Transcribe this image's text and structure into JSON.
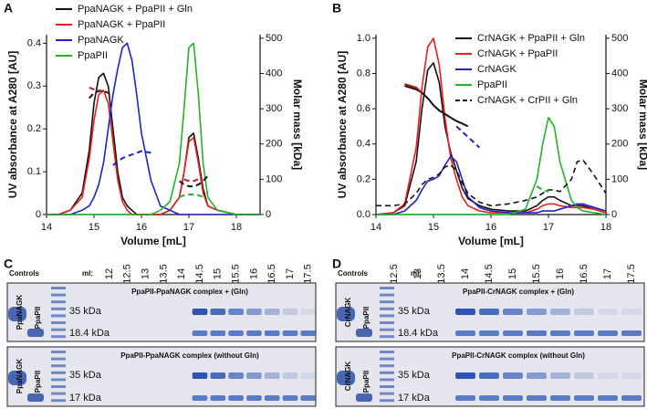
{
  "chart_data": [
    {
      "type": "line",
      "panel": "A",
      "xlabel": "Volume [mL]",
      "ylabel": "UV absorbance at A280 [AU]",
      "y2label": "Molar mass [kDa]",
      "xlim": [
        14,
        18.5
      ],
      "xticks": [
        14,
        15,
        16,
        17,
        18
      ],
      "ylim": [
        0,
        0.42
      ],
      "yticks": [
        0,
        0.1,
        0.2,
        0.3,
        0.4
      ],
      "y2lim": [
        0,
        510
      ],
      "y2ticks": [
        0,
        100,
        200,
        300,
        400,
        500
      ],
      "legend": "upper left",
      "x": [
        14,
        14.25,
        14.5,
        14.75,
        14.9,
        15.0,
        15.1,
        15.2,
        15.3,
        15.4,
        15.5,
        15.6,
        15.7,
        15.8,
        15.9,
        16.0,
        16.2,
        16.4,
        16.6,
        16.8,
        16.9,
        17.0,
        17.1,
        17.2,
        17.3,
        17.4,
        17.6,
        18.0,
        18.5
      ],
      "series": [
        {
          "name": "PpaNAGK + PpaPII + Gln",
          "color": "#111111",
          "values": [
            0,
            0,
            0.01,
            0.05,
            0.15,
            0.26,
            0.32,
            0.33,
            0.3,
            0.2,
            0.1,
            0.04,
            0.02,
            0.01,
            0,
            0,
            0,
            0,
            0.01,
            0.04,
            0.1,
            0.18,
            0.19,
            0.13,
            0.06,
            0.02,
            0.01,
            0,
            0
          ]
        },
        {
          "name": "PpaNAGK + PpaPII",
          "color": "#e8201f",
          "values": [
            0,
            0,
            0.01,
            0.04,
            0.13,
            0.22,
            0.28,
            0.29,
            0.26,
            0.17,
            0.08,
            0.03,
            0.01,
            0,
            0,
            0,
            0,
            0,
            0.01,
            0.04,
            0.1,
            0.17,
            0.18,
            0.12,
            0.05,
            0.02,
            0.01,
            0,
            0
          ]
        },
        {
          "name": "PpaNAGK",
          "color": "#1f22c8",
          "values": [
            0,
            0,
            0,
            0.01,
            0.02,
            0.04,
            0.07,
            0.12,
            0.2,
            0.28,
            0.34,
            0.39,
            0.4,
            0.36,
            0.28,
            0.19,
            0.08,
            0.02,
            0.01,
            0,
            0,
            0,
            0,
            0,
            0,
            0,
            0,
            0,
            0
          ]
        },
        {
          "name": "PpaPII",
          "color": "#22b422",
          "values": [
            0,
            0,
            0,
            0,
            0,
            0,
            0,
            0,
            0,
            0,
            0,
            0,
            0,
            0,
            0,
            0,
            0,
            0.01,
            0.03,
            0.12,
            0.25,
            0.39,
            0.4,
            0.28,
            0.12,
            0.04,
            0.01,
            0,
            0
          ]
        },
        {
          "color": "#111111",
          "axis": "y2",
          "dashed": true,
          "values": [
            null,
            null,
            null,
            null,
            330,
            345,
            350,
            350,
            345,
            335,
            null,
            null,
            null,
            null,
            null,
            null,
            null,
            null,
            null,
            95,
            85,
            80,
            80,
            85,
            95,
            110,
            null,
            null,
            null
          ]
        },
        {
          "color": "#b0201a",
          "axis": "y2",
          "dashed": true,
          "values": [
            null,
            null,
            null,
            null,
            360,
            355,
            352,
            350,
            345,
            null,
            null,
            null,
            null,
            null,
            null,
            null,
            null,
            null,
            null,
            null,
            100,
            95,
            95,
            100,
            null,
            null,
            null,
            null,
            null
          ]
        },
        {
          "color": "#1f22c8",
          "axis": "y2",
          "dashed": true,
          "values": [
            null,
            null,
            null,
            null,
            null,
            null,
            null,
            null,
            null,
            140,
            150,
            160,
            165,
            170,
            175,
            180,
            175,
            null,
            null,
            null,
            null,
            null,
            null,
            null,
            null,
            null,
            null,
            null,
            null
          ]
        },
        {
          "color": "#22b422",
          "axis": "y2",
          "dashed": true,
          "values": [
            null,
            null,
            null,
            null,
            null,
            null,
            null,
            null,
            null,
            null,
            null,
            null,
            null,
            null,
            null,
            null,
            null,
            null,
            null,
            50,
            55,
            57,
            57,
            55,
            50,
            null,
            null,
            null,
            null
          ]
        }
      ]
    },
    {
      "type": "line",
      "panel": "B",
      "xlabel": "Volume [mL]",
      "ylabel": "UV absorbance at A280 [AU]",
      "y2label": "Molar mass [kDa]",
      "xlim": [
        14,
        18
      ],
      "xticks": [
        14,
        15,
        16,
        17,
        18
      ],
      "ylim": [
        0,
        1.02
      ],
      "yticks": [
        {
          "value": 0,
          "label": "0.0"
        },
        0.2,
        0.4,
        0.6,
        0.8,
        {
          "value": 1,
          "label": "1.0"
        }
      ],
      "y2lim": [
        0,
        510
      ],
      "y2ticks": [
        0,
        100,
        200,
        300,
        400,
        500
      ],
      "legend": "upper right",
      "x": [
        14,
        14.3,
        14.5,
        14.7,
        14.8,
        14.9,
        15.0,
        15.1,
        15.2,
        15.3,
        15.4,
        15.5,
        15.6,
        15.8,
        16.0,
        16.3,
        16.6,
        16.8,
        16.9,
        17.0,
        17.1,
        17.2,
        17.4,
        17.5,
        17.6,
        17.8,
        18.0
      ],
      "series": [
        {
          "name": "CrNAGK + PpaPII + Gln",
          "color": "#111111",
          "values": [
            0,
            0.01,
            0.05,
            0.3,
            0.6,
            0.82,
            0.86,
            0.75,
            0.5,
            0.35,
            0.25,
            0.15,
            0.09,
            0.05,
            0.03,
            0.02,
            0.02,
            0.05,
            0.08,
            0.1,
            0.1,
            0.08,
            0.05,
            0.05,
            0.05,
            0.03,
            0.01
          ]
        },
        {
          "name": "CrNAGK + PpaPII",
          "color": "#e8201f",
          "values": [
            0,
            0.01,
            0.06,
            0.38,
            0.72,
            0.95,
            1.0,
            0.85,
            0.55,
            0.32,
            0.2,
            0.1,
            0.05,
            0.02,
            0.01,
            0.01,
            0.01,
            0.03,
            0.05,
            0.06,
            0.06,
            0.05,
            0.04,
            0.04,
            0.04,
            0.03,
            0.01
          ]
        },
        {
          "name": "CrNAGK",
          "color": "#1f22c8",
          "values": [
            0,
            0,
            0.02,
            0.08,
            0.14,
            0.19,
            0.2,
            0.22,
            0.28,
            0.33,
            0.3,
            0.2,
            0.1,
            0.04,
            0.02,
            0.01,
            0.01,
            0.01,
            0.02,
            0.02,
            0.02,
            0.03,
            0.05,
            0.06,
            0.06,
            0.04,
            0.02
          ]
        },
        {
          "name": "PpaPII",
          "color": "#22b422",
          "values": [
            0,
            0,
            0,
            0,
            0,
            0,
            0,
            0,
            0,
            0,
            0,
            0,
            0,
            0,
            0,
            0,
            0.03,
            0.2,
            0.4,
            0.55,
            0.5,
            0.3,
            0.08,
            0.04,
            0.02,
            0.01,
            0
          ]
        },
        {
          "name": "CrNAGK + CrPII + Gln",
          "color": "#111111",
          "dashed": true,
          "values": [
            0.05,
            0.05,
            0.06,
            0.12,
            0.17,
            0.2,
            0.21,
            0.23,
            0.27,
            0.28,
            0.25,
            0.18,
            0.12,
            0.07,
            0.05,
            0.06,
            0.08,
            0.1,
            0.12,
            0.14,
            0.14,
            0.13,
            0.2,
            0.3,
            0.31,
            0.22,
            0.12
          ]
        },
        {
          "color": "#111111",
          "axis": "y2",
          "values": [
            null,
            null,
            365,
            355,
            345,
            330,
            310,
            295,
            285,
            275,
            265,
            258,
            250,
            null,
            null,
            null,
            null,
            null,
            null,
            null,
            null,
            null,
            null,
            null,
            null,
            null,
            null
          ]
        },
        {
          "color": "#b0201a",
          "axis": "y2",
          "values": [
            null,
            null,
            370,
            360,
            345,
            null,
            null,
            null,
            null,
            null,
            null,
            null,
            null,
            null,
            null,
            null,
            null,
            null,
            null,
            null,
            null,
            null,
            null,
            null,
            null,
            null,
            null
          ]
        },
        {
          "color": "#1f22c8",
          "axis": "y2",
          "dashed": true,
          "values": [
            null,
            null,
            null,
            null,
            null,
            null,
            null,
            null,
            null,
            null,
            250,
            235,
            220,
            190,
            null,
            null,
            null,
            null,
            null,
            null,
            null,
            null,
            null,
            null,
            null,
            null,
            null
          ]
        },
        {
          "color": "#22b422",
          "axis": "y2",
          "dashed": true,
          "values": [
            null,
            null,
            null,
            null,
            null,
            null,
            null,
            null,
            null,
            null,
            null,
            null,
            null,
            null,
            null,
            null,
            null,
            80,
            70,
            65,
            null,
            null,
            null,
            null,
            null,
            null,
            null
          ]
        }
      ]
    }
  ],
  "gels": [
    {
      "panel": "C",
      "controls": "Controls",
      "ml": "ml:",
      "lanes": [
        "12",
        "12.5",
        "13",
        "13.5",
        "14",
        "14.5",
        "15",
        "15.5",
        "16",
        "16.5",
        "17",
        "17.5"
      ],
      "control_labels": [
        "PpaNAGK",
        "PpaPII",
        "PpaNAGK",
        "PpaPII"
      ],
      "markers": [
        "35 kDa",
        "18.4 kDa",
        "35 kDa",
        "17 kDa"
      ],
      "titles": [
        "PpaPII-PpaNAGK complex + (Gln)",
        "PpaPII-PpaNAGK complex (without Gln)"
      ]
    },
    {
      "panel": "D",
      "controls": "Controls",
      "ml": "ml:",
      "lanes": [
        "12.5",
        "13",
        "13.5",
        "14",
        "14.5",
        "15",
        "15.5",
        "16",
        "16.5",
        "17",
        "17.5"
      ],
      "control_labels": [
        "CrNAGK",
        "PpaPII",
        "CrNAGK",
        "PpaPII"
      ],
      "markers": [
        "35 kDa",
        "18.4 kDa",
        "35 kDa",
        "17 kDa"
      ],
      "titles": [
        "PpaPII-CrNAGK complex + (Gln)",
        "PpaPII-CrNAGK complex (without Gln)"
      ]
    }
  ]
}
